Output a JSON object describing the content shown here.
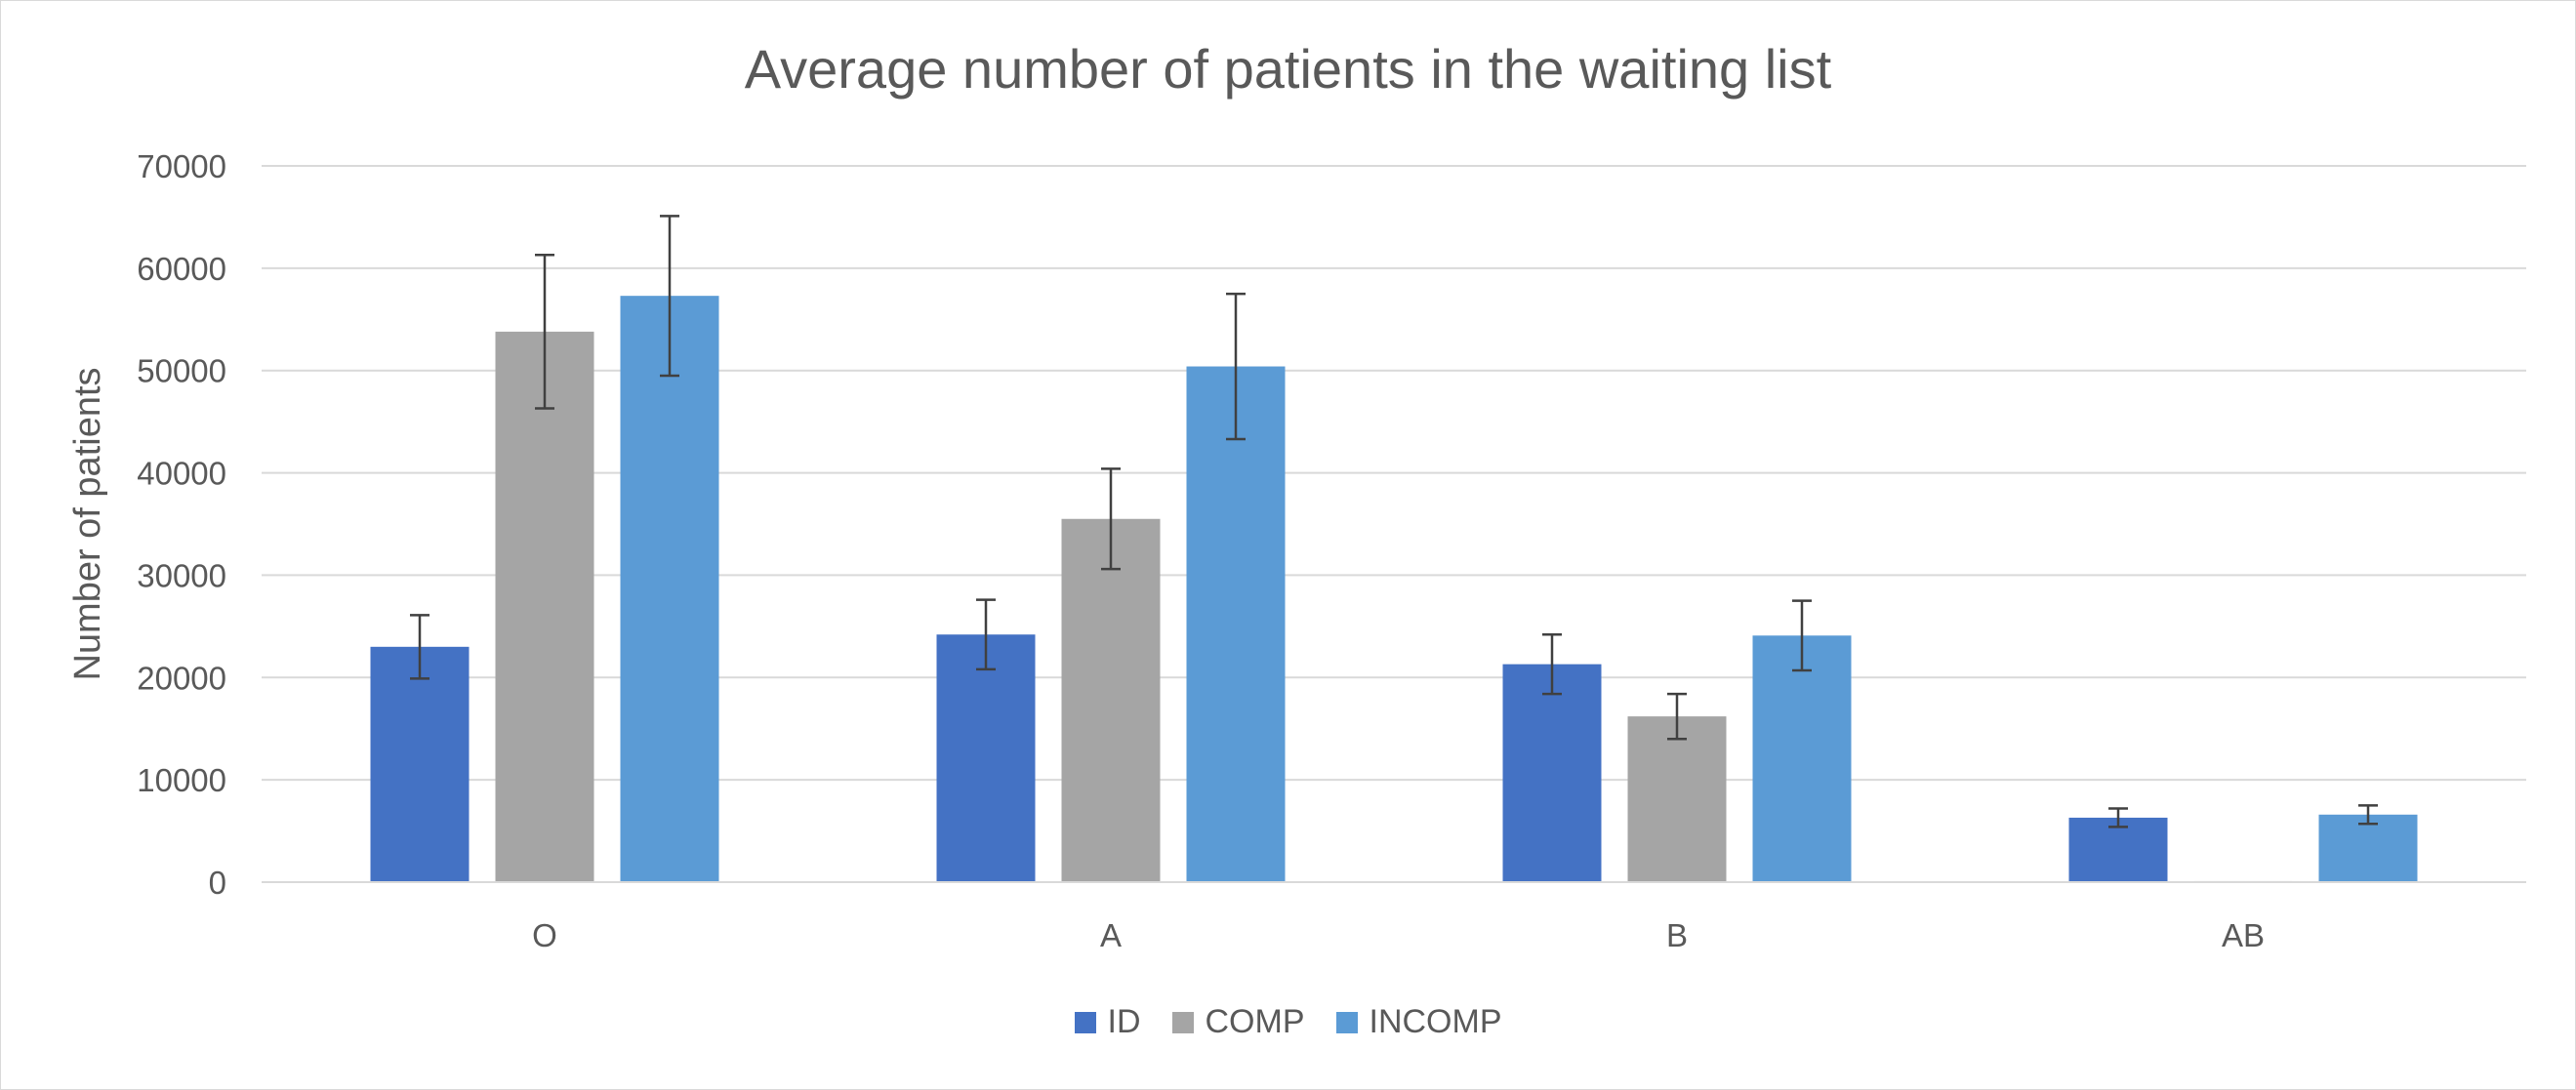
{
  "chart_data": {
    "type": "bar",
    "title": "Average number of patients in the waiting list",
    "xlabel": "",
    "ylabel": "Number of patients",
    "ylim": [
      0,
      70000
    ],
    "yticks": [
      0,
      10000,
      20000,
      30000,
      40000,
      50000,
      60000,
      70000
    ],
    "grid": true,
    "legend_position": "bottom",
    "categories": [
      "O",
      "A",
      "B",
      "AB"
    ],
    "series": [
      {
        "name": "ID",
        "color": "#4472C4",
        "values": [
          23000,
          24200,
          21300,
          6300
        ],
        "error": [
          3100,
          3400,
          2900,
          900
        ]
      },
      {
        "name": "COMP",
        "color": "#A5A5A5",
        "values": [
          53800,
          35500,
          16200,
          100
        ],
        "error": [
          7500,
          4900,
          2200,
          0
        ]
      },
      {
        "name": "INCOMP",
        "color": "#5B9BD5",
        "values": [
          57300,
          50400,
          24100,
          6600
        ],
        "error": [
          7800,
          7100,
          3400,
          900
        ]
      }
    ]
  }
}
